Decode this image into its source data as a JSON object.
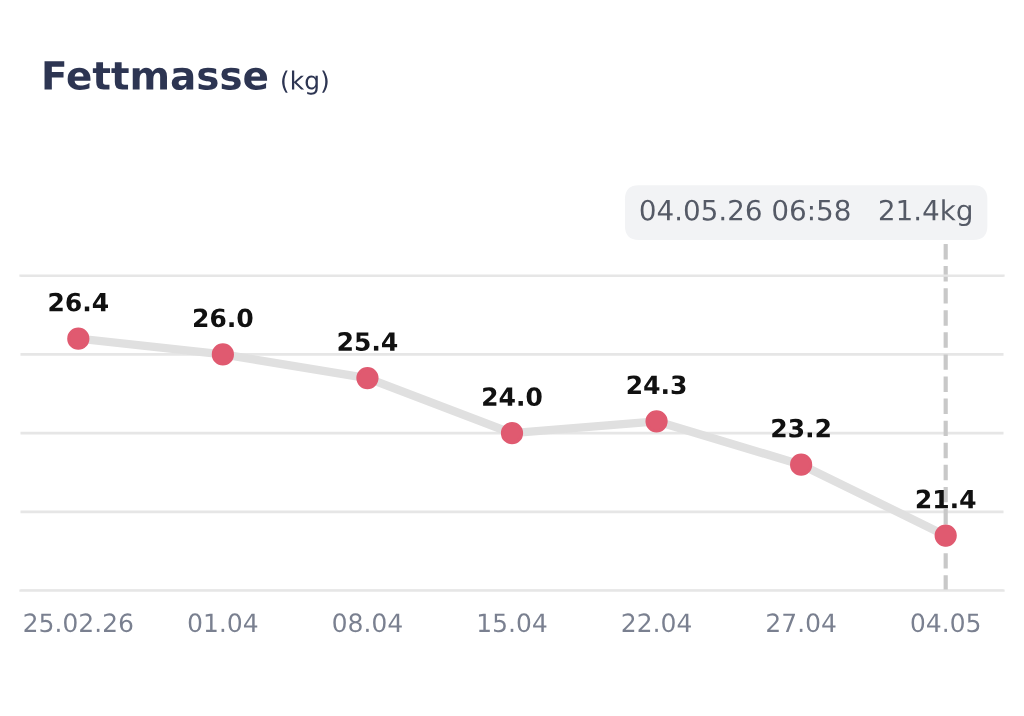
{
  "chart_data": {
    "type": "line",
    "title": "Fettmasse",
    "subtitle": "(kg)",
    "categories": [
      "25.02.26",
      "01.04",
      "08.04",
      "15.04",
      "22.04",
      "27.04",
      "04.05"
    ],
    "series": [
      {
        "color": "#e0e0e0",
        "colors": [
          "#e05a70",
          "#e05a70",
          "#e05a70",
          "#e05a70",
          "#e05a70",
          "#e05a70",
          "#e05a70"
        ],
        "values": [
          26.4,
          26.0,
          25.4,
          24.0,
          24.3,
          23.2,
          21.4
        ],
        "value_labels": [
          "26.4",
          "26.0",
          "25.4",
          "24.0",
          "24.3",
          "23.2",
          "21.4"
        ]
      }
    ],
    "marker": "circle",
    "line_style": "solid",
    "ylim": [
      20,
      28
    ],
    "yticks": [
      {
        "value": 20,
        "label": null
      },
      {
        "value": 22,
        "label": null
      },
      {
        "value": 24,
        "label": null
      },
      {
        "value": 26,
        "label": null
      },
      {
        "value": 28,
        "label": null
      }
    ],
    "grid": "y",
    "tick_labels": "x",
    "ref_lines": [
      {
        "axis": "x",
        "value": "04.05",
        "label": "04.05.26 06:58   21.4kg",
        "color": "#c8c8c8",
        "line_style": "dashed"
      }
    ]
  }
}
